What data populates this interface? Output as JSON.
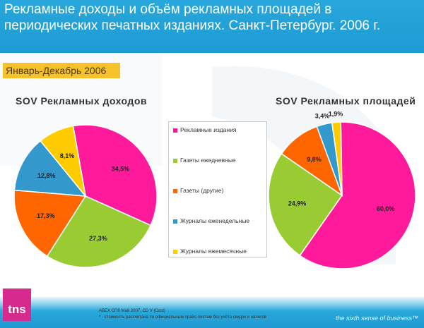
{
  "header": {
    "title": "Рекламные доходы и объём рекламных площадей в периодических печатных изданиях. Санкт-Петербург. 2006 г."
  },
  "period_label": "Январь-Декабрь 2006",
  "legend": [
    {
      "label": "Рекламные издания",
      "color": "#ff1a9c"
    },
    {
      "label": "Газеты ежедневные",
      "color": "#99cc33"
    },
    {
      "label": "Газеты (другие)",
      "color": "#ff6600"
    },
    {
      "label": "Журналы еженедельные",
      "color": "#3399cc"
    },
    {
      "label": "Журналы ежемесячные",
      "color": "#ffcc00"
    }
  ],
  "chart_data": [
    {
      "type": "pie",
      "title": "SOV Рекламных доходов",
      "categories": [
        "Рекламные издания",
        "Газеты ежедневные",
        "Газеты (другие)",
        "Журналы еженедельные",
        "Журналы ежемесячные"
      ],
      "values": [
        34.5,
        27.3,
        17.3,
        12.8,
        8.1
      ],
      "labels": [
        "34,5%",
        "27,3%",
        "17,3%",
        "12,8%",
        "8,1%"
      ]
    },
    {
      "type": "pie",
      "title": "SOV Рекламных площадей",
      "categories": [
        "Рекламные издания",
        "Газеты ежедневные",
        "Газеты (другие)",
        "Журналы еженедельные",
        "Журналы ежемесячные"
      ],
      "values": [
        60.0,
        24.9,
        9.8,
        3.4,
        1.9
      ],
      "labels": [
        "60,0%",
        "24,9%",
        "9,8%",
        "3,4%",
        "1,9%"
      ]
    }
  ],
  "footer": {
    "source_note": "ABEX СПб Май 2007, CD V (Cost)",
    "cost_note": "* - стоимость рассчитана по официальным прайс-листам без учёта скидок и налогов",
    "logo_text": "tns",
    "tagline": "the sixth sense of business™"
  }
}
